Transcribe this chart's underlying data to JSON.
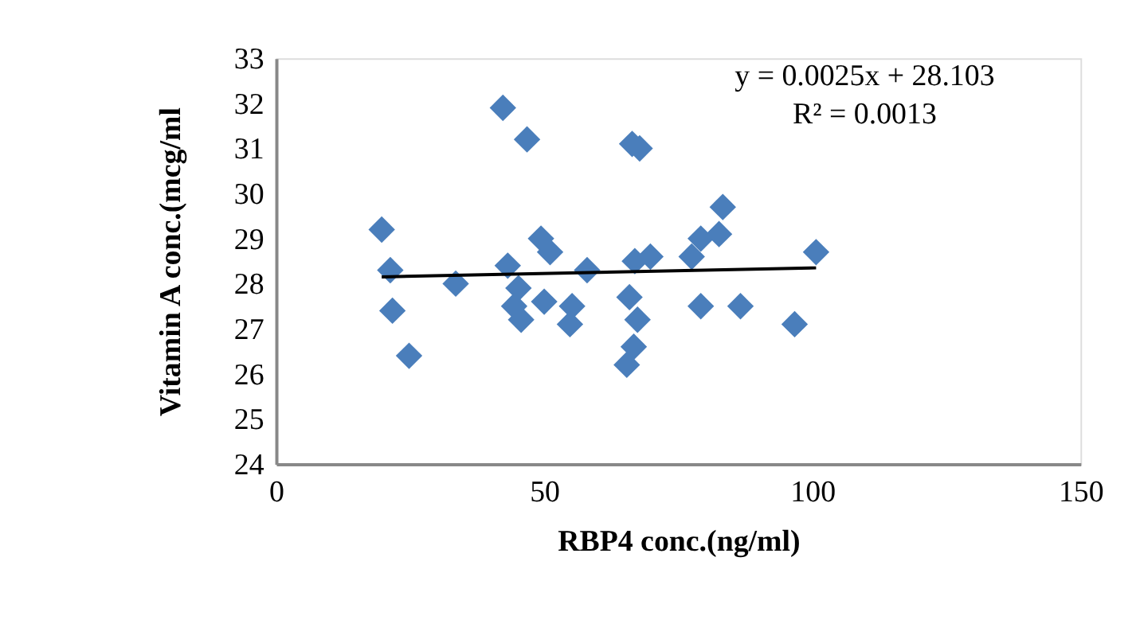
{
  "chart_data": {
    "type": "scatter",
    "xlabel": "RBP4 conc.(ng/ml)",
    "ylabel": "Vitamin A conc.(mcg/ml",
    "xlim": [
      0,
      150
    ],
    "xticks": [
      0,
      50,
      100,
      150
    ],
    "ylim": [
      24,
      33
    ],
    "yticks": [
      24,
      25,
      26,
      27,
      28,
      29,
      30,
      31,
      32,
      33
    ],
    "grid": false,
    "annotations": [
      "y = 0.0025x + 28.103",
      "R² = 0.0013"
    ],
    "series": [
      {
        "color": "#4a7ebb",
        "marker": "diamond",
        "x": [
          19.7,
          21.3,
          21.7,
          24.8,
          33.5,
          42.3,
          46.8,
          43.2,
          49.4,
          51.1,
          45.2,
          44.4,
          45.7,
          50.0,
          55.2,
          54.8,
          58.0,
          66.4,
          67.8,
          66.9,
          69.8,
          65.9,
          67.4,
          66.7,
          65.4,
          77.5,
          79.2,
          82.6,
          83.3,
          79.2,
          86.6,
          96.7,
          100.7
        ],
        "values": [
          29.2,
          28.3,
          27.4,
          26.4,
          28.0,
          31.9,
          31.2,
          28.4,
          29.0,
          28.7,
          27.9,
          27.5,
          27.2,
          27.6,
          27.5,
          27.1,
          28.3,
          31.1,
          31.0,
          28.5,
          28.6,
          27.7,
          27.2,
          26.6,
          26.2,
          28.6,
          29.0,
          29.1,
          29.7,
          27.5,
          27.5,
          27.1,
          28.7
        ]
      },
      {
        "type": "line",
        "color": "#000000",
        "marker": "none",
        "line_style": "solid",
        "x": [
          19.7,
          100.7
        ],
        "values": [
          28.15,
          28.35
        ]
      }
    ]
  }
}
